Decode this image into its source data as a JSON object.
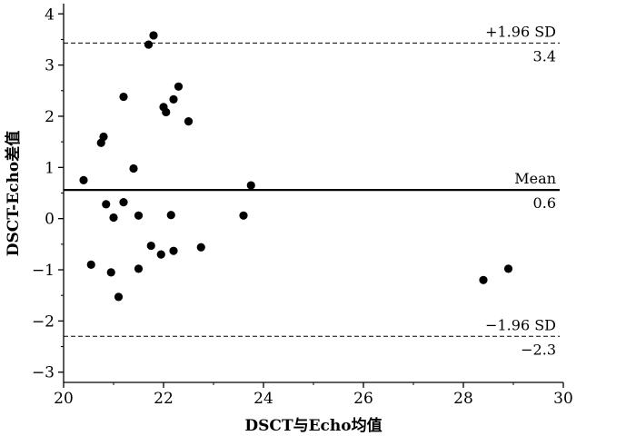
{
  "chart_data": {
    "type": "scatter",
    "xlabel": "DSCT与Echo均值",
    "ylabel": "DSCT-Echo差值",
    "xlim": [
      20,
      30
    ],
    "ylim": [
      -3.2,
      4.2
    ],
    "xticks": [
      20,
      22,
      24,
      26,
      28,
      30
    ],
    "yticks": [
      -3,
      -2,
      -1,
      0,
      1,
      2,
      3,
      4
    ],
    "grid": false,
    "points": [
      {
        "x": 20.4,
        "y": 0.75
      },
      {
        "x": 20.55,
        "y": -0.9
      },
      {
        "x": 20.75,
        "y": 1.48
      },
      {
        "x": 20.8,
        "y": 1.6
      },
      {
        "x": 20.85,
        "y": 0.28
      },
      {
        "x": 20.95,
        "y": -1.05
      },
      {
        "x": 21.0,
        "y": 0.02
      },
      {
        "x": 21.1,
        "y": -1.53
      },
      {
        "x": 21.2,
        "y": 2.38
      },
      {
        "x": 21.2,
        "y": 0.32
      },
      {
        "x": 21.4,
        "y": 0.98
      },
      {
        "x": 21.5,
        "y": 0.06
      },
      {
        "x": 21.5,
        "y": -0.98
      },
      {
        "x": 21.7,
        "y": 3.4
      },
      {
        "x": 21.75,
        "y": -0.53
      },
      {
        "x": 21.8,
        "y": 3.58
      },
      {
        "x": 21.95,
        "y": -0.7
      },
      {
        "x": 22.0,
        "y": 2.18
      },
      {
        "x": 22.05,
        "y": 2.08
      },
      {
        "x": 22.15,
        "y": 0.07
      },
      {
        "x": 22.2,
        "y": 2.33
      },
      {
        "x": 22.2,
        "y": -0.63
      },
      {
        "x": 22.3,
        "y": 2.58
      },
      {
        "x": 22.5,
        "y": 1.9
      },
      {
        "x": 22.75,
        "y": -0.56
      },
      {
        "x": 23.6,
        "y": 0.06
      },
      {
        "x": 23.75,
        "y": 0.65
      },
      {
        "x": 28.4,
        "y": -1.2
      },
      {
        "x": 28.9,
        "y": -0.98
      }
    ],
    "reference_lines": [
      {
        "y": 3.43,
        "style": "dashed",
        "label": "+1.96 SD",
        "value_label": "3.4"
      },
      {
        "y": 0.56,
        "style": "solid",
        "label": "Mean",
        "value_label": "0.6"
      },
      {
        "y": -2.3,
        "style": "dashed",
        "label": "−1.96 SD",
        "value_label": "−2.3"
      }
    ]
  }
}
